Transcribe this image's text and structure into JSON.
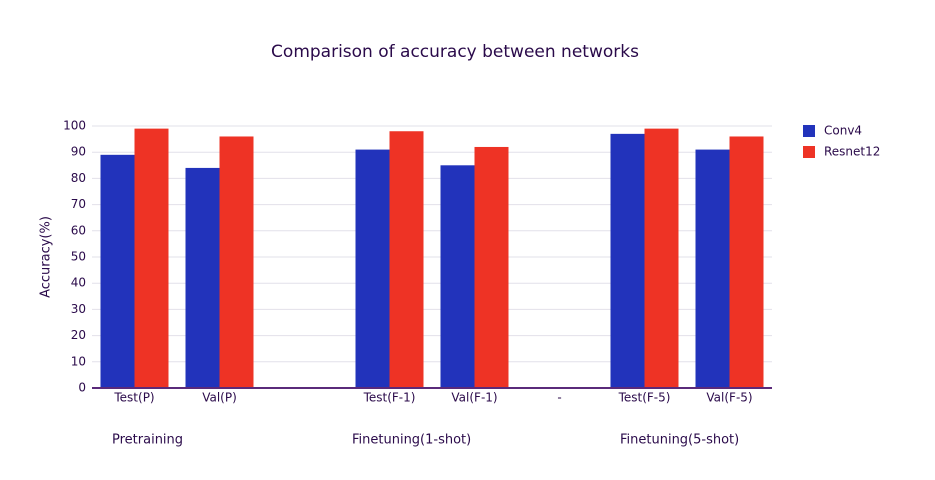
{
  "chart_data": {
    "type": "bar",
    "title": "Comparison of accuracy between networks",
    "y_label": "Accuracy(%)",
    "categories": [
      "Test(P)",
      "Val(P)",
      null,
      "Test(F-1)",
      "Val(F-1)",
      "-",
      "Test(F-5)",
      "Val(F-5)"
    ],
    "series": [
      {
        "name": "Conv4",
        "color": "#2233bb",
        "values": [
          89,
          84,
          null,
          91,
          85,
          null,
          97,
          91
        ]
      },
      {
        "name": "Resnet12",
        "color": "#ee3325",
        "values": [
          99,
          96,
          null,
          98,
          92,
          null,
          99,
          96
        ]
      }
    ],
    "annotations": [
      "Pretraining",
      "Finetuning(1-shot)",
      "Finetuning(5-shot)"
    ],
    "ylim": [
      0,
      100
    ],
    "yticks": [
      0,
      10,
      20,
      30,
      40,
      50,
      60,
      70,
      80,
      90,
      100
    ],
    "grid": true,
    "legend": "right"
  }
}
